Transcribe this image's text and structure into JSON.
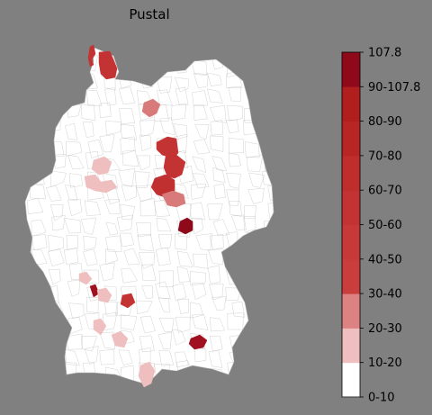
{
  "map": {
    "title": "Pustal",
    "background_color": "#808080",
    "land_color": "#ffffff",
    "border_color": "#bdbdbd"
  },
  "legend": {
    "ticks": [
      "0-10",
      "10-20",
      "20-30",
      "30-40",
      "40-50",
      "50-60",
      "60-70",
      "70-80",
      "80-90",
      "90-107.8",
      "107.8"
    ],
    "min": 0,
    "max": 107.8,
    "colors": [
      "#ffffff",
      "#efbfbf",
      "#dc8282",
      "#c93d3d",
      "#c73838",
      "#c43333",
      "#bf2d2d",
      "#b82525",
      "#b01e1e",
      "#a01020",
      "#8e0a1b"
    ]
  },
  "highlighted_regions": [
    {
      "name": "north-schleswig-holstein",
      "color": "#c43333"
    },
    {
      "name": "hamburg-area",
      "color": "#d97a7a"
    },
    {
      "name": "sachsen-anhalt-north",
      "color": "#c43333"
    },
    {
      "name": "sachsen-anhalt-central",
      "color": "#c43333"
    },
    {
      "name": "sachsen-anhalt-south",
      "color": "#c13030"
    },
    {
      "name": "harz-area",
      "color": "#d97a7a"
    },
    {
      "name": "leipzig-area",
      "color": "#8e0a1b"
    },
    {
      "name": "nrw-east",
      "color": "#efbfbf"
    },
    {
      "name": "nrw-south",
      "color": "#efbfbf"
    },
    {
      "name": "pfalz",
      "color": "#efbfbf"
    },
    {
      "name": "mannheim",
      "color": "#a01020"
    },
    {
      "name": "heidelberg-area",
      "color": "#efbfbf"
    },
    {
      "name": "wuerzburg-area",
      "color": "#c43333"
    },
    {
      "name": "stuttgart-area",
      "color": "#efbfbf"
    },
    {
      "name": "ulm-area",
      "color": "#efbfbf"
    },
    {
      "name": "bodensee-area",
      "color": "#efbfbf"
    },
    {
      "name": "muenchen-area",
      "color": "#a01020"
    }
  ]
}
